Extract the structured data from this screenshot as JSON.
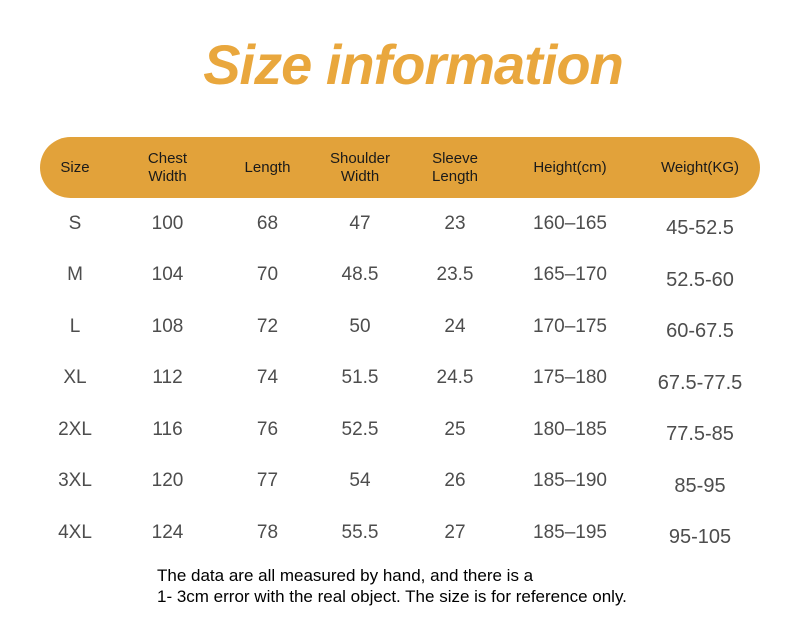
{
  "chart_data": {
    "type": "table",
    "title": "Size information",
    "columns": [
      "Size",
      "Chest Width",
      "Length",
      "Shoulder Width",
      "Sleeve Length",
      "Height(cm)",
      "Weight(KG)"
    ],
    "rows": [
      [
        "S",
        "100",
        "68",
        "47",
        "23",
        "160–165",
        "45-52.5"
      ],
      [
        "M",
        "104",
        "70",
        "48.5",
        "23.5",
        "165–170",
        "52.5-60"
      ],
      [
        "L",
        "108",
        "72",
        "50",
        "24",
        "170–175",
        "60-67.5"
      ],
      [
        "XL",
        "112",
        "74",
        "51.5",
        "24.5",
        "175–180",
        "67.5-77.5"
      ],
      [
        "2XL",
        "116",
        "76",
        "52.5",
        "25",
        "180–185",
        "77.5-85"
      ],
      [
        "3XL",
        "120",
        "77",
        "54",
        "26",
        "185–190",
        "85-95"
      ],
      [
        "4XL",
        "124",
        "78",
        "55.5",
        "27",
        "185–195",
        "95-105"
      ]
    ]
  },
  "header_display": [
    "Size",
    "Chest\nWidth",
    "Length",
    "Shoulder\nWidth",
    "Sleeve\nLength",
    "Height(cm)",
    "Weight(KG)"
  ],
  "footer": {
    "line1": "The data are all measured by hand, and there is a",
    "line2": "1- 3cm error with the real object. The size is for reference only."
  },
  "colors": {
    "title": "#E9A73D",
    "header_bg": "#E2A23A",
    "header_text": "#1A1A1A",
    "row_text": "#4D4D4D",
    "footer_text": "#000000"
  }
}
